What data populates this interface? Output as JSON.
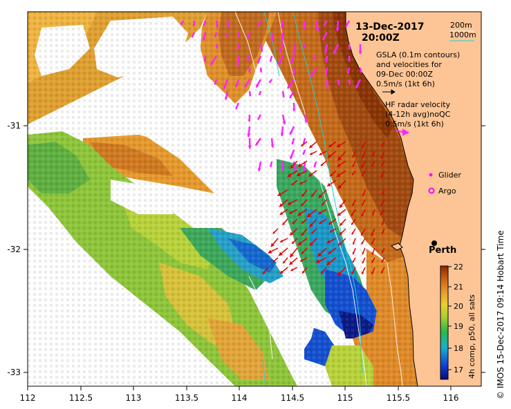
{
  "map": {
    "date": "13-Dec-2017",
    "time": "20:00Z",
    "scale_200m": "200m",
    "scale_1000m": "1000m",
    "gsla_line1": "GSLA (0.1m contours)",
    "gsla_line2": "and velocities for",
    "gsla_line3": "09-Dec 00:00Z",
    "gsla_speed": "0.5m/s (1kt 6h)",
    "hf_line1": "HF radar velocity",
    "hf_line2": "(4-12h avg)noQC",
    "hf_speed": "0.5m/s (1kt 6h)",
    "glider_label": "Glider",
    "argo_label": "Argo",
    "city": "Perth",
    "side_caption": "© IMOS 15-Dec-2017 09:14 Hobart Time",
    "colorbar_label": "4h comp, p50, all sats",
    "colorbar_ticks": [
      "22",
      "21",
      "20",
      "19",
      "18",
      "17"
    ],
    "x_ticks": [
      "112",
      "112.5",
      "113",
      "113.5",
      "114",
      "114.5",
      "115",
      "115.5",
      "116"
    ],
    "y_ticks": [
      "-31",
      "-32",
      "-33"
    ],
    "colors": {
      "land": "#fdc596",
      "hf_arrow": "#e00000",
      "gsla_arrow": "#ff22ff",
      "contour_200": "#ffffff",
      "contour_1000": "#22d0d0",
      "glider": "#ff00ff",
      "argo": "#ff00ff"
    }
  }
}
